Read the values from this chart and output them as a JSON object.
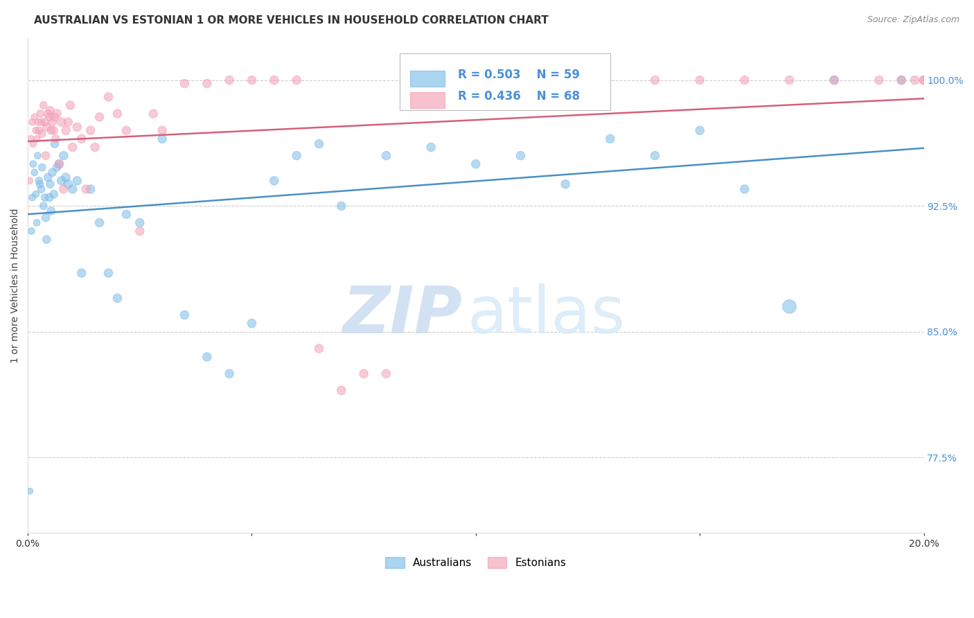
{
  "title": "AUSTRALIAN VS ESTONIAN 1 OR MORE VEHICLES IN HOUSEHOLD CORRELATION CHART",
  "source": "Source: ZipAtlas.com",
  "ylabel": "1 or more Vehicles in Household",
  "xlim": [
    0.0,
    20.0
  ],
  "ylim": [
    73.0,
    102.5
  ],
  "yticks": [
    77.5,
    85.0,
    92.5,
    100.0
  ],
  "xticks": [
    0.0,
    5.0,
    10.0,
    15.0,
    20.0
  ],
  "xtick_labels": [
    "0.0%",
    "",
    "",
    "",
    "20.0%"
  ],
  "ytick_labels": [
    "77.5%",
    "85.0%",
    "92.5%",
    "100.0%"
  ],
  "legend_r_aus": "R = 0.503",
  "legend_n_aus": "N = 59",
  "legend_r_est": "R = 0.436",
  "legend_n_est": "N = 68",
  "aus_color": "#7dbde8",
  "est_color": "#f4a0b5",
  "aus_line_color": "#4a90c4",
  "est_line_color": "#d4607a",
  "watermark_zip": "ZIP",
  "watermark_atlas": "atlas",
  "aus_x": [
    0.05,
    0.08,
    0.1,
    0.12,
    0.15,
    0.18,
    0.2,
    0.22,
    0.25,
    0.27,
    0.3,
    0.32,
    0.35,
    0.38,
    0.4,
    0.42,
    0.45,
    0.48,
    0.5,
    0.52,
    0.55,
    0.58,
    0.6,
    0.65,
    0.7,
    0.75,
    0.8,
    0.85,
    0.9,
    1.0,
    1.1,
    1.2,
    1.4,
    1.6,
    1.8,
    2.0,
    2.2,
    2.5,
    3.0,
    3.5,
    4.0,
    4.5,
    5.0,
    5.5,
    6.0,
    6.5,
    7.0,
    8.0,
    9.0,
    10.0,
    11.0,
    12.0,
    13.0,
    14.0,
    15.0,
    16.0,
    17.0,
    18.0,
    19.5
  ],
  "aus_y": [
    75.5,
    91.0,
    93.0,
    95.0,
    94.5,
    93.2,
    91.5,
    95.5,
    94.0,
    93.8,
    93.5,
    94.8,
    92.5,
    93.0,
    91.8,
    90.5,
    94.2,
    93.0,
    93.8,
    92.2,
    94.5,
    93.2,
    96.2,
    94.8,
    95.0,
    94.0,
    95.5,
    94.2,
    93.8,
    93.5,
    94.0,
    88.5,
    93.5,
    91.5,
    88.5,
    87.0,
    92.0,
    91.5,
    96.5,
    86.0,
    83.5,
    82.5,
    85.5,
    94.0,
    95.5,
    96.2,
    92.5,
    95.5,
    96.0,
    95.0,
    95.5,
    93.8,
    96.5,
    95.5,
    97.0,
    93.5,
    86.5,
    100.0,
    100.0
  ],
  "aus_sizes": [
    40,
    50,
    50,
    50,
    50,
    50,
    50,
    50,
    60,
    60,
    60,
    60,
    60,
    60,
    70,
    70,
    70,
    70,
    70,
    70,
    70,
    70,
    70,
    70,
    80,
    80,
    80,
    80,
    80,
    80,
    80,
    80,
    80,
    80,
    80,
    80,
    80,
    80,
    80,
    80,
    80,
    80,
    80,
    80,
    80,
    80,
    80,
    80,
    80,
    80,
    80,
    80,
    80,
    80,
    80,
    80,
    200,
    80,
    80
  ],
  "est_x": [
    0.04,
    0.07,
    0.1,
    0.12,
    0.15,
    0.18,
    0.2,
    0.22,
    0.25,
    0.28,
    0.3,
    0.32,
    0.35,
    0.38,
    0.4,
    0.42,
    0.45,
    0.48,
    0.5,
    0.52,
    0.55,
    0.58,
    0.6,
    0.62,
    0.65,
    0.7,
    0.75,
    0.8,
    0.85,
    0.9,
    0.95,
    1.0,
    1.1,
    1.2,
    1.3,
    1.4,
    1.5,
    1.6,
    1.8,
    2.0,
    2.2,
    2.5,
    2.8,
    3.0,
    3.5,
    4.0,
    4.5,
    5.0,
    5.5,
    6.0,
    6.5,
    7.0,
    7.5,
    8.0,
    9.0,
    10.0,
    11.0,
    12.0,
    14.0,
    15.0,
    16.0,
    17.0,
    18.0,
    19.0,
    19.5,
    19.8,
    20.0,
    20.0
  ],
  "est_y": [
    94.0,
    96.5,
    97.5,
    96.2,
    97.8,
    97.0,
    96.5,
    97.5,
    97.0,
    98.0,
    97.5,
    96.8,
    98.5,
    97.5,
    95.5,
    97.2,
    98.0,
    97.8,
    98.2,
    97.0,
    97.5,
    97.0,
    97.8,
    96.5,
    98.0,
    95.0,
    97.5,
    93.5,
    97.0,
    97.5,
    98.5,
    96.0,
    97.2,
    96.5,
    93.5,
    97.0,
    96.0,
    97.8,
    99.0,
    98.0,
    97.0,
    91.0,
    98.0,
    97.0,
    99.8,
    99.8,
    100.0,
    100.0,
    100.0,
    100.0,
    84.0,
    81.5,
    82.5,
    82.5,
    100.0,
    100.0,
    100.0,
    100.0,
    100.0,
    100.0,
    100.0,
    100.0,
    100.0,
    100.0,
    100.0,
    100.0,
    100.0,
    100.0
  ],
  "est_sizes": [
    50,
    50,
    50,
    50,
    50,
    50,
    50,
    50,
    60,
    60,
    60,
    60,
    60,
    60,
    70,
    70,
    70,
    70,
    70,
    70,
    70,
    70,
    70,
    70,
    80,
    80,
    80,
    80,
    80,
    80,
    80,
    80,
    80,
    80,
    80,
    80,
    80,
    80,
    80,
    80,
    80,
    80,
    80,
    80,
    80,
    80,
    80,
    80,
    80,
    80,
    80,
    80,
    80,
    80,
    80,
    80,
    80,
    80,
    80,
    80,
    80,
    80,
    80,
    80,
    80,
    80,
    80,
    80
  ],
  "title_fontsize": 11,
  "label_fontsize": 10,
  "tick_fontsize": 10,
  "legend_fontsize": 12
}
